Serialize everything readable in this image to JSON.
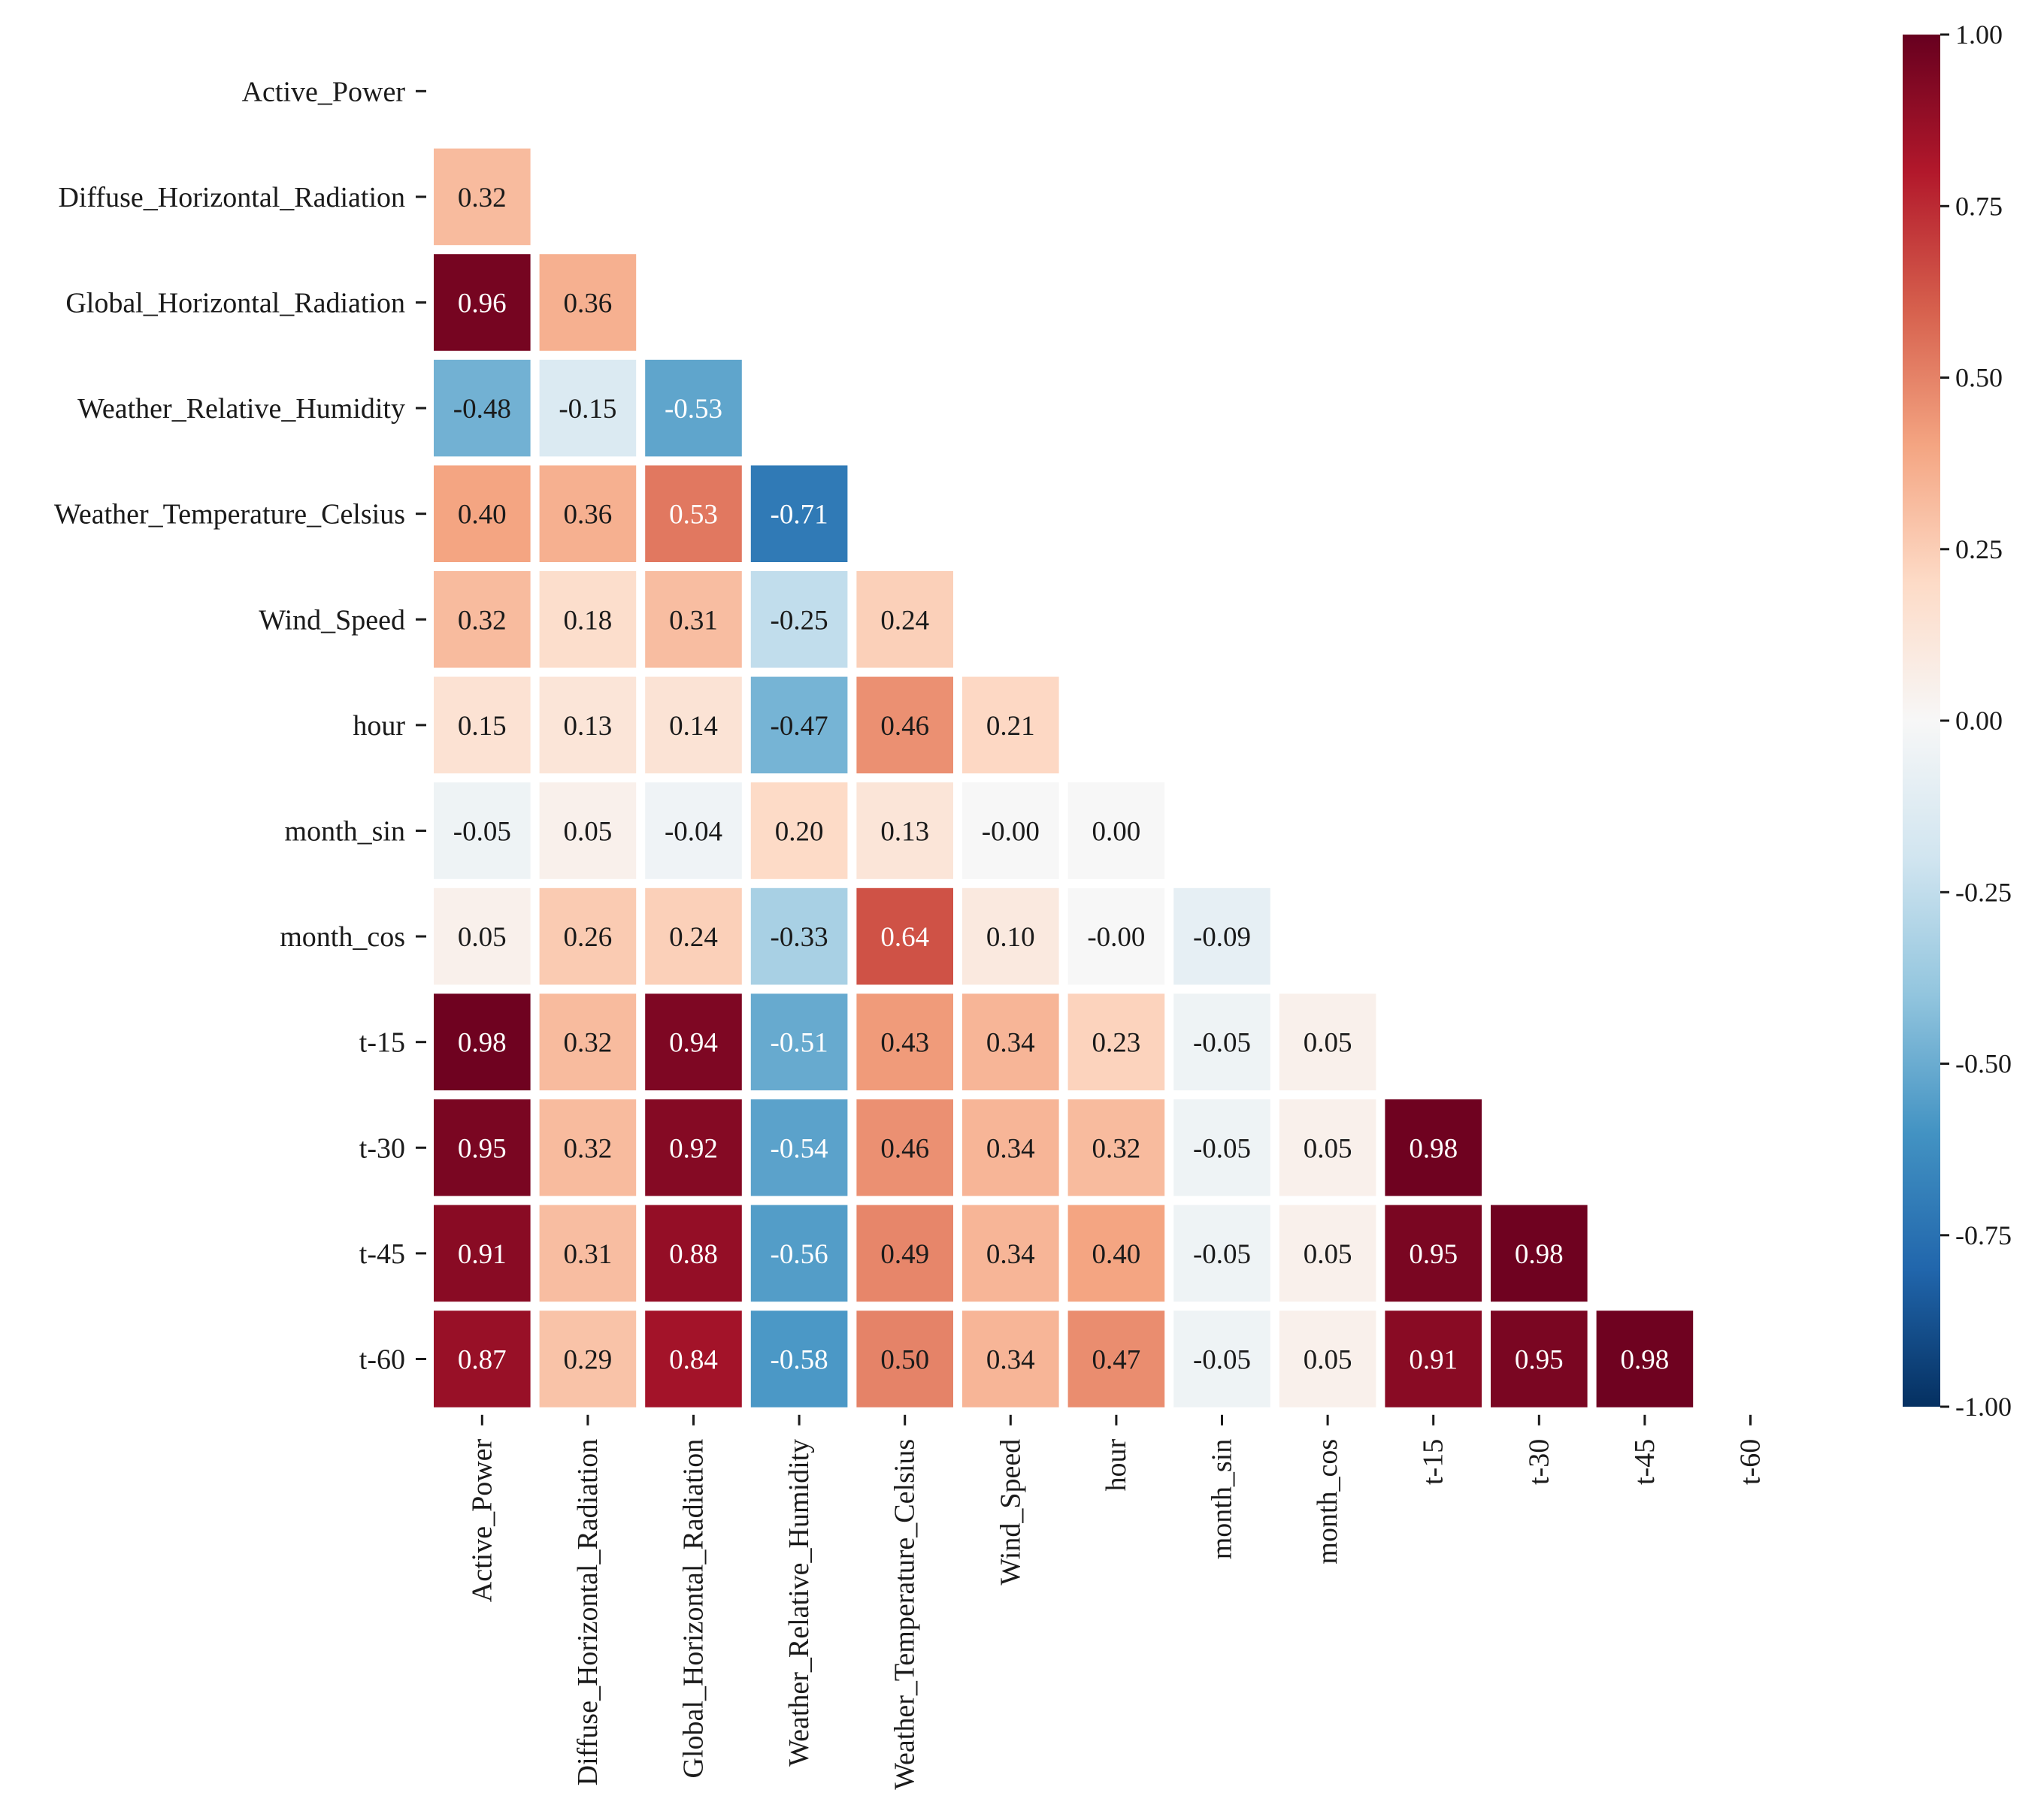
{
  "chart_data": {
    "type": "heatmap",
    "title": "",
    "variables": [
      "Active_Power",
      "Diffuse_Horizontal_Radiation",
      "Global_Horizontal_Radiation",
      "Weather_Relative_Humidity",
      "Weather_Temperature_Celsius",
      "Wind_Speed",
      "hour",
      "month_sin",
      "month_cos",
      "t-15",
      "t-30",
      "t-45",
      "t-60"
    ],
    "matrix": [
      [],
      [
        "0.32"
      ],
      [
        "0.96",
        "0.36"
      ],
      [
        "-0.48",
        "-0.15",
        "-0.53"
      ],
      [
        "0.40",
        "0.36",
        "0.53",
        "-0.71"
      ],
      [
        "0.32",
        "0.18",
        "0.31",
        "-0.25",
        "0.24"
      ],
      [
        "0.15",
        "0.13",
        "0.14",
        "-0.47",
        "0.46",
        "0.21"
      ],
      [
        "-0.05",
        "0.05",
        "-0.04",
        "0.20",
        "0.13",
        "-0.00",
        "0.00"
      ],
      [
        "0.05",
        "0.26",
        "0.24",
        "-0.33",
        "0.64",
        "0.10",
        "-0.00",
        "-0.09"
      ],
      [
        "0.98",
        "0.32",
        "0.94",
        "-0.51",
        "0.43",
        "0.34",
        "0.23",
        "-0.05",
        "0.05"
      ],
      [
        "0.95",
        "0.32",
        "0.92",
        "-0.54",
        "0.46",
        "0.34",
        "0.32",
        "-0.05",
        "0.05",
        "0.98"
      ],
      [
        "0.91",
        "0.31",
        "0.88",
        "-0.56",
        "0.49",
        "0.34",
        "0.40",
        "-0.05",
        "0.05",
        "0.95",
        "0.98"
      ],
      [
        "0.87",
        "0.29",
        "0.84",
        "-0.58",
        "0.50",
        "0.34",
        "0.47",
        "-0.05",
        "0.05",
        "0.91",
        "0.95",
        "0.98"
      ]
    ],
    "mask": "upper-triangle-including-diagonal",
    "colormap": "RdBu_r",
    "vmin": -1,
    "vmax": 1,
    "colorbar_ticks": [
      "1.00",
      "0.75",
      "0.50",
      "0.25",
      "0.00",
      "-0.25",
      "-0.50",
      "-0.75",
      "-1.00"
    ],
    "colorbar_placement": "right"
  }
}
